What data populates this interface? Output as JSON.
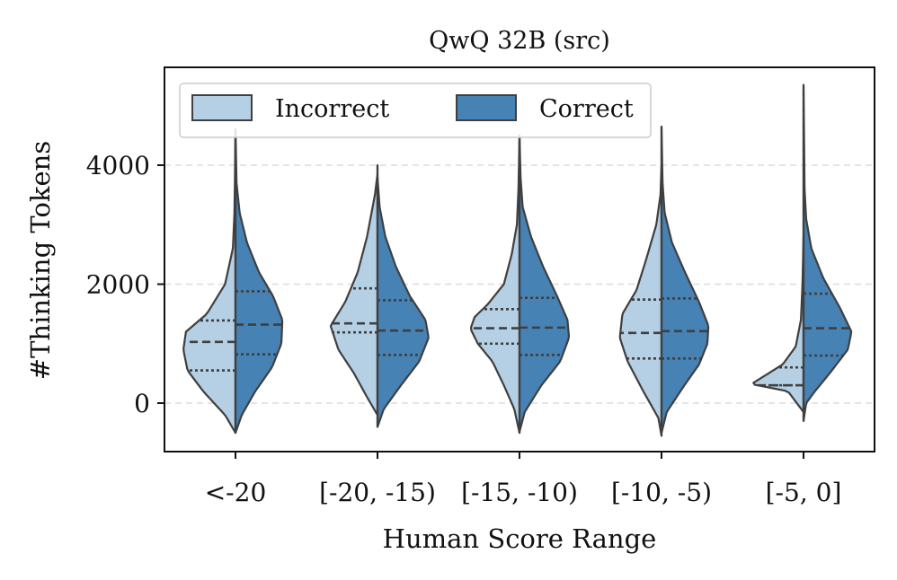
{
  "chart_data": {
    "type": "violin",
    "title": "QwQ 32B (src)",
    "xlabel": "Human Score Range",
    "ylabel": "#Thinking Tokens",
    "categories": [
      "<-20",
      "[-20, -15)",
      "[-15, -10)",
      "[-10, -5)",
      "[-5, 0]"
    ],
    "ylim": [
      -800,
      5600
    ],
    "yticks": [
      0,
      2000,
      4000
    ],
    "grid": "horizontal-dashed",
    "legend": {
      "position": "top-left",
      "entries": [
        {
          "label": "Incorrect",
          "color": "#b5d0e5"
        },
        {
          "label": "Correct",
          "color": "#4682b4"
        }
      ]
    },
    "series": [
      {
        "name": "Incorrect",
        "side": "left",
        "color": "#b5d0e5",
        "quartiles": [
          {
            "q1": 550,
            "median": 1030,
            "q3": 1390
          },
          {
            "q1": 1190,
            "median": 1340,
            "q3": 1930
          },
          {
            "q1": 1000,
            "median": 1260,
            "q3": 1580
          },
          {
            "q1": 750,
            "median": 1180,
            "q3": 1740
          },
          {
            "q1": 300,
            "median": 300,
            "q3": 600
          }
        ],
        "profiles": [
          [
            [
              -500,
              0
            ],
            [
              -200,
              0.2
            ],
            [
              200,
              0.62
            ],
            [
              550,
              0.92
            ],
            [
              900,
              1.0
            ],
            [
              1200,
              0.95
            ],
            [
              1500,
              0.55
            ],
            [
              2000,
              0.2
            ],
            [
              2600,
              0.05
            ],
            [
              3200,
              0.02
            ],
            [
              3800,
              0.01
            ],
            [
              4600,
              0
            ]
          ],
          [
            [
              -200,
              0
            ],
            [
              100,
              0.2
            ],
            [
              500,
              0.45
            ],
            [
              900,
              0.75
            ],
            [
              1300,
              0.9
            ],
            [
              1700,
              0.62
            ],
            [
              2200,
              0.38
            ],
            [
              2800,
              0.2
            ],
            [
              3500,
              0.05
            ],
            [
              3850,
              0
            ],
            [
              4000,
              0
            ]
          ],
          [
            [
              -500,
              0
            ],
            [
              -100,
              0.1
            ],
            [
              300,
              0.3
            ],
            [
              700,
              0.52
            ],
            [
              1000,
              0.8
            ],
            [
              1250,
              0.94
            ],
            [
              1450,
              0.86
            ],
            [
              1650,
              0.62
            ],
            [
              2000,
              0.3
            ],
            [
              2500,
              0.15
            ],
            [
              3000,
              0.05
            ],
            [
              3600,
              0.02
            ],
            [
              4500,
              0
            ]
          ],
          [
            [
              -550,
              0
            ],
            [
              -250,
              0.06
            ],
            [
              200,
              0.35
            ],
            [
              700,
              0.65
            ],
            [
              1100,
              0.8
            ],
            [
              1500,
              0.75
            ],
            [
              1900,
              0.48
            ],
            [
              2400,
              0.3
            ],
            [
              3000,
              0.1
            ],
            [
              3500,
              0.02
            ],
            [
              4000,
              0
            ]
          ],
          [
            [
              -150,
              0
            ],
            [
              200,
              0.3
            ],
            [
              320,
              1.0
            ],
            [
              430,
              0.8
            ],
            [
              650,
              0.4
            ],
            [
              950,
              0.15
            ],
            [
              1400,
              0.05
            ],
            [
              2000,
              0.02
            ],
            [
              2800,
              0
            ]
          ]
        ]
      },
      {
        "name": "Correct",
        "side": "right",
        "color": "#4682b4",
        "quartiles": [
          {
            "q1": 820,
            "median": 1320,
            "q3": 1880
          },
          {
            "q1": 810,
            "median": 1220,
            "q3": 1730
          },
          {
            "q1": 810,
            "median": 1270,
            "q3": 1770
          },
          {
            "q1": 750,
            "median": 1210,
            "q3": 1760
          },
          {
            "q1": 800,
            "median": 1260,
            "q3": 1840
          }
        ],
        "profiles": [
          [
            [
              -500,
              0
            ],
            [
              -200,
              0.12
            ],
            [
              200,
              0.38
            ],
            [
              600,
              0.7
            ],
            [
              1000,
              0.88
            ],
            [
              1400,
              0.9
            ],
            [
              1800,
              0.72
            ],
            [
              2200,
              0.45
            ],
            [
              2700,
              0.22
            ],
            [
              3200,
              0.08
            ],
            [
              3700,
              0.02
            ],
            [
              4600,
              0
            ]
          ],
          [
            [
              -400,
              0
            ],
            [
              -100,
              0.12
            ],
            [
              300,
              0.45
            ],
            [
              700,
              0.8
            ],
            [
              1100,
              0.98
            ],
            [
              1400,
              0.92
            ],
            [
              1800,
              0.62
            ],
            [
              2300,
              0.35
            ],
            [
              2800,
              0.15
            ],
            [
              3300,
              0.04
            ],
            [
              3800,
              0
            ]
          ],
          [
            [
              -480,
              0
            ],
            [
              -150,
              0.1
            ],
            [
              300,
              0.42
            ],
            [
              700,
              0.78
            ],
            [
              1100,
              0.95
            ],
            [
              1400,
              0.92
            ],
            [
              1800,
              0.72
            ],
            [
              2300,
              0.45
            ],
            [
              2800,
              0.22
            ],
            [
              3300,
              0.06
            ],
            [
              3800,
              0.02
            ],
            [
              4500,
              0
            ]
          ],
          [
            [
              -500,
              0
            ],
            [
              -150,
              0.1
            ],
            [
              250,
              0.4
            ],
            [
              650,
              0.72
            ],
            [
              1000,
              0.88
            ],
            [
              1300,
              0.9
            ],
            [
              1700,
              0.72
            ],
            [
              2200,
              0.45
            ],
            [
              2700,
              0.2
            ],
            [
              3200,
              0.06
            ],
            [
              3700,
              0.02
            ],
            [
              4650,
              0
            ]
          ],
          [
            [
              -300,
              0
            ],
            [
              0,
              0.05
            ],
            [
              200,
              0.22
            ],
            [
              500,
              0.5
            ],
            [
              900,
              0.85
            ],
            [
              1200,
              0.92
            ],
            [
              1600,
              0.7
            ],
            [
              2100,
              0.38
            ],
            [
              2600,
              0.15
            ],
            [
              3100,
              0.05
            ],
            [
              3600,
              0.02
            ],
            [
              5350,
              0
            ]
          ]
        ]
      }
    ]
  }
}
